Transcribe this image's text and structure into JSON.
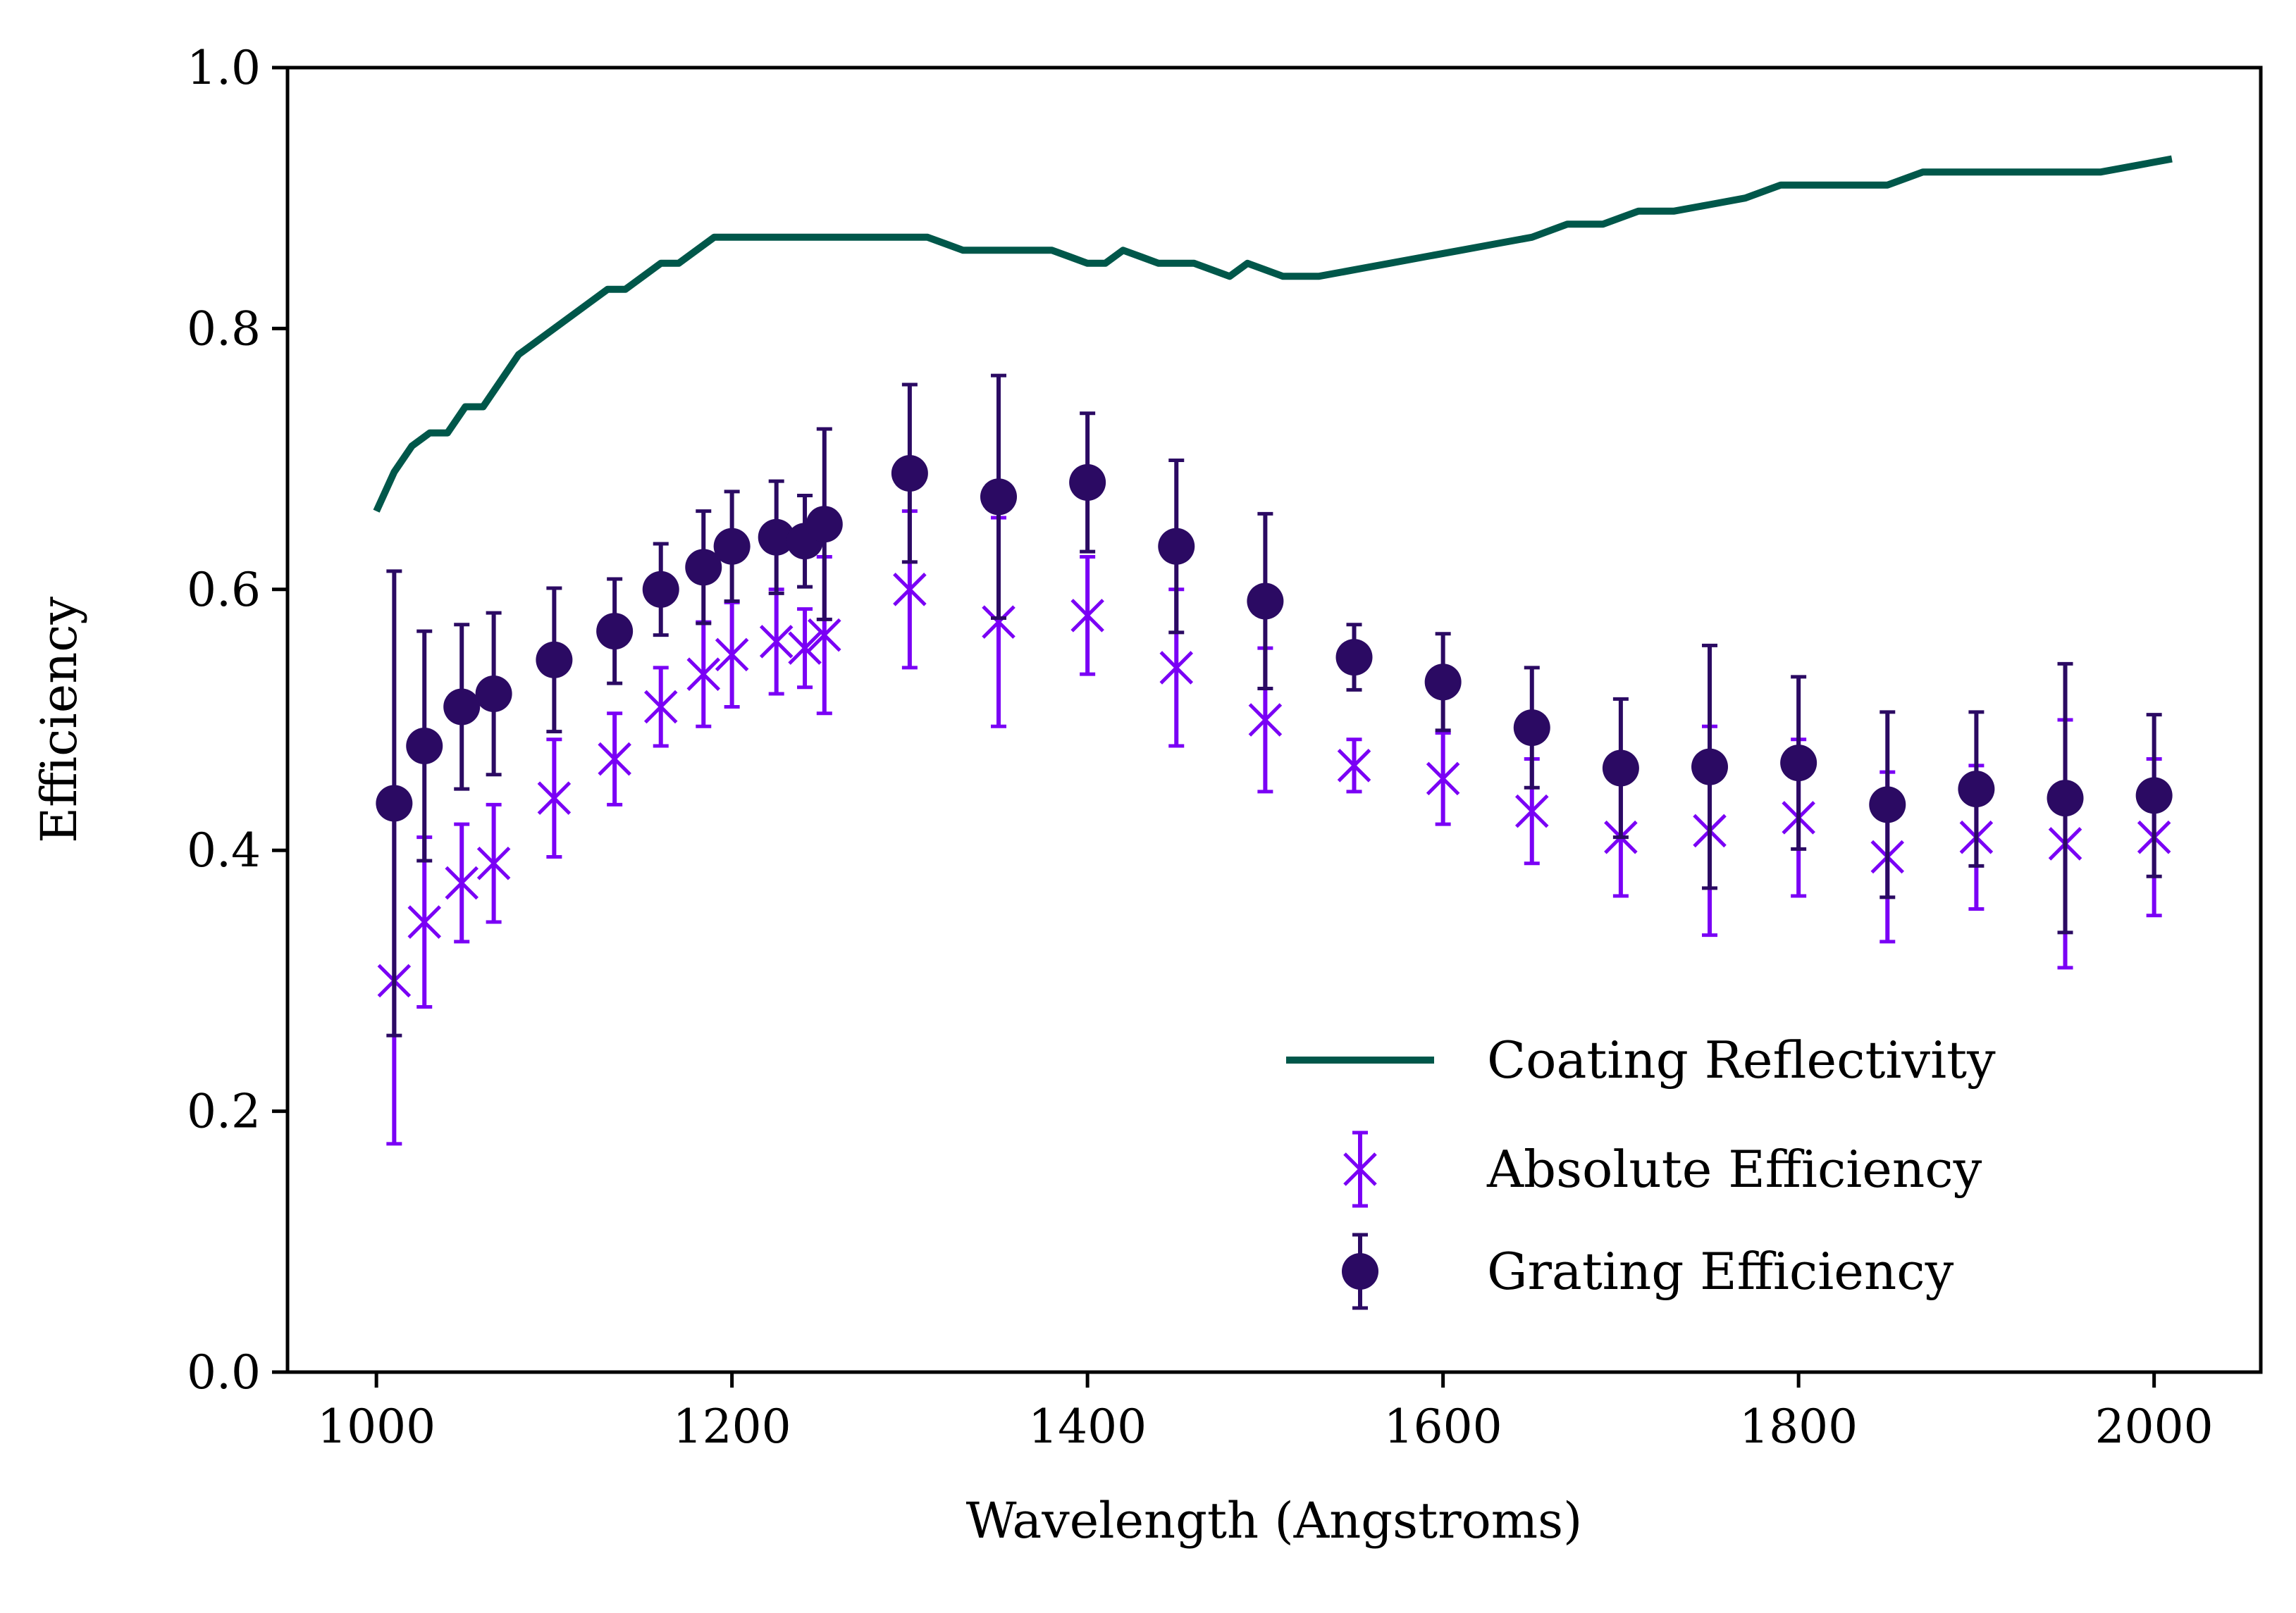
{
  "chart_data": {
    "type": "scatter",
    "xlabel": "Wavelength (Angstroms)",
    "ylabel": "Efficiency",
    "xlim": [
      950,
      2060
    ],
    "ylim": [
      0.0,
      1.0
    ],
    "x_ticks": [
      "1000",
      "1200",
      "1400",
      "1600",
      "1800",
      "2000"
    ],
    "x_tick_values": [
      1000,
      1200,
      1400,
      1600,
      1800,
      2000
    ],
    "y_ticks": [
      "0.0",
      "0.2",
      "0.4",
      "0.6",
      "0.8",
      "1.0"
    ],
    "y_tick_values": [
      0.0,
      0.2,
      0.4,
      0.6,
      0.8,
      1.0
    ],
    "legend_position": "lower-right",
    "series": [
      {
        "name": "Coating Reflectivity",
        "label": "Coating Reflectivity",
        "kind": "line",
        "color": "#00574a",
        "x": [
          1000,
          1010,
          1020,
          1030,
          1040,
          1050,
          1060,
          1070,
          1080,
          1090,
          1100,
          1110,
          1120,
          1130,
          1140,
          1150,
          1160,
          1170,
          1180,
          1190,
          1200,
          1210,
          1220,
          1230,
          1240,
          1250,
          1260,
          1270,
          1280,
          1290,
          1300,
          1310,
          1320,
          1330,
          1340,
          1350,
          1360,
          1370,
          1380,
          1390,
          1400,
          1410,
          1420,
          1430,
          1440,
          1450,
          1460,
          1470,
          1480,
          1490,
          1500,
          1510,
          1530,
          1550,
          1570,
          1590,
          1610,
          1630,
          1650,
          1670,
          1690,
          1710,
          1730,
          1750,
          1770,
          1790,
          1810,
          1830,
          1850,
          1870,
          1890,
          1910,
          1930,
          1950,
          1970,
          1990,
          2010
        ],
        "values": [
          0.66,
          0.69,
          0.71,
          0.72,
          0.72,
          0.74,
          0.74,
          0.76,
          0.78,
          0.79,
          0.8,
          0.81,
          0.82,
          0.83,
          0.83,
          0.84,
          0.85,
          0.85,
          0.86,
          0.87,
          0.87,
          0.87,
          0.87,
          0.87,
          0.87,
          0.87,
          0.87,
          0.87,
          0.87,
          0.87,
          0.87,
          0.87,
          0.865,
          0.86,
          0.86,
          0.86,
          0.86,
          0.86,
          0.86,
          0.855,
          0.85,
          0.85,
          0.86,
          0.855,
          0.85,
          0.85,
          0.85,
          0.845,
          0.84,
          0.85,
          0.845,
          0.84,
          0.84,
          0.845,
          0.85,
          0.855,
          0.86,
          0.865,
          0.87,
          0.88,
          0.88,
          0.89,
          0.89,
          0.895,
          0.9,
          0.91,
          0.91,
          0.91,
          0.91,
          0.92,
          0.92,
          0.92,
          0.92,
          0.92,
          0.92,
          0.925,
          0.93
        ]
      },
      {
        "name": "Absolute Efficiency",
        "label": "Absolute Efficiency",
        "kind": "errorbar-x",
        "color": "#7a00f5",
        "x": [
          1010,
          1027,
          1048,
          1066,
          1100,
          1134,
          1160,
          1184,
          1200,
          1225,
          1241,
          1252,
          1300,
          1350,
          1400,
          1450,
          1500,
          1550,
          1600,
          1650,
          1700,
          1750,
          1800,
          1850,
          1900,
          1950,
          2000
        ],
        "values": [
          0.3,
          0.345,
          0.375,
          0.39,
          0.44,
          0.47,
          0.51,
          0.535,
          0.55,
          0.56,
          0.555,
          0.565,
          0.6,
          0.575,
          0.58,
          0.54,
          0.5,
          0.465,
          0.455,
          0.43,
          0.41,
          0.415,
          0.425,
          0.395,
          0.41,
          0.405,
          0.41
        ],
        "errors": [
          0.125,
          0.065,
          0.045,
          0.045,
          0.045,
          0.035,
          0.03,
          0.04,
          0.04,
          0.04,
          0.03,
          0.06,
          0.06,
          0.08,
          0.045,
          0.06,
          0.055,
          0.02,
          0.035,
          0.04,
          0.045,
          0.08,
          0.06,
          0.065,
          0.055,
          0.095,
          0.06
        ]
      },
      {
        "name": "Grating Efficiency",
        "label": "Grating Efficiency",
        "kind": "errorbar-o",
        "color": "#2b0a63",
        "x": [
          1010,
          1027,
          1048,
          1066,
          1100,
          1134,
          1160,
          1184,
          1200,
          1225,
          1241,
          1252,
          1300,
          1350,
          1400,
          1450,
          1500,
          1550,
          1600,
          1650,
          1700,
          1750,
          1800,
          1850,
          1900,
          1950,
          2000
        ],
        "values": [
          0.436,
          0.48,
          0.51,
          0.52,
          0.546,
          0.568,
          0.6,
          0.617,
          0.633,
          0.64,
          0.637,
          0.65,
          0.689,
          0.671,
          0.682,
          0.633,
          0.591,
          0.548,
          0.529,
          0.494,
          0.463,
          0.464,
          0.467,
          0.435,
          0.447,
          0.44,
          0.442
        ],
        "errors": [
          0.178,
          0.088,
          0.063,
          0.062,
          0.055,
          0.04,
          0.035,
          0.043,
          0.042,
          0.043,
          0.035,
          0.073,
          0.068,
          0.093,
          0.053,
          0.066,
          0.067,
          0.025,
          0.037,
          0.046,
          0.053,
          0.093,
          0.066,
          0.071,
          0.059,
          0.103,
          0.062
        ]
      }
    ]
  }
}
